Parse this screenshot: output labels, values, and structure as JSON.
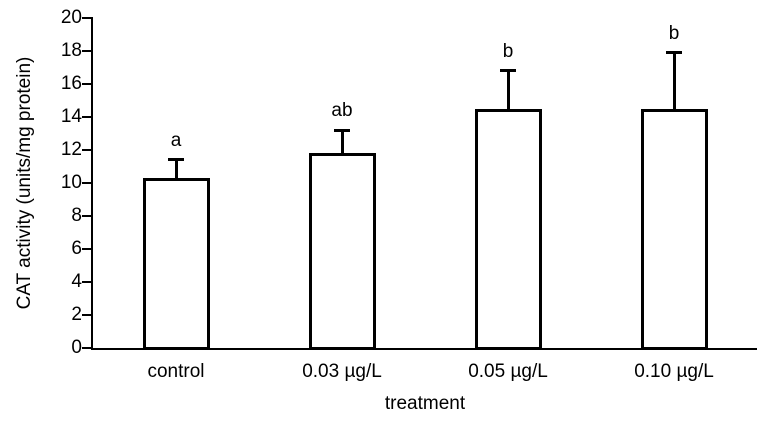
{
  "chart_data": {
    "type": "bar",
    "title": "",
    "categories": [
      "control",
      "0.03 µg/L",
      "0.05 µg/L",
      "0.10 µg/L"
    ],
    "series": [
      {
        "name": "CAT activity",
        "values": [
          10.3,
          11.8,
          14.5,
          14.5
        ],
        "error_upper": [
          1.1,
          1.4,
          2.3,
          3.4
        ]
      }
    ],
    "significance_letters": [
      "a",
      "ab",
      "b",
      "b"
    ],
    "xlabel": "treatment",
    "ylabel": "CAT activity (units/mg protein)",
    "ylim": [
      0,
      20
    ],
    "ytick_step": 2,
    "ytick_labels": [
      "0",
      "2",
      "4",
      "6",
      "8",
      "10",
      "12",
      "14",
      "16",
      "18",
      "20"
    ],
    "grid": false,
    "legend_position": "none",
    "bar_fill_color": "#ffffff",
    "bar_border_color": "#000000",
    "text_color": "#000000"
  }
}
